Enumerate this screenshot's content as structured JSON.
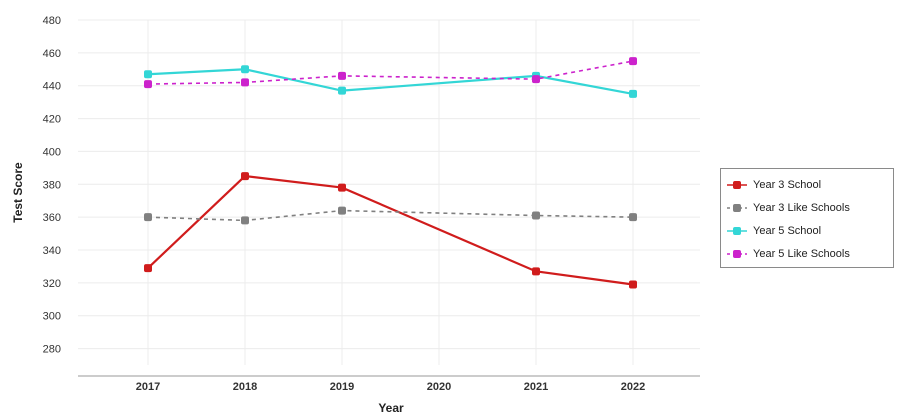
{
  "chart_data": {
    "type": "line",
    "title": "",
    "xlabel": "Year",
    "ylabel": "Test Score",
    "x": [
      "2017",
      "2018",
      "2019",
      "2020",
      "2021",
      "2022"
    ],
    "ylim": [
      270,
      480
    ],
    "yticks": [
      "280",
      "300",
      "320",
      "340",
      "360",
      "380",
      "400",
      "420",
      "440",
      "460",
      "480"
    ],
    "grid": true,
    "legend_position": "right",
    "series": [
      {
        "name": "Year 3 School",
        "values": [
          329,
          385,
          378,
          null,
          327,
          319
        ],
        "color": "#d01c1c",
        "dashed": false,
        "connect_gaps": true
      },
      {
        "name": "Year 3 Like Schools",
        "values": [
          360,
          358,
          364,
          null,
          361,
          360
        ],
        "color": "#808080",
        "dashed": true,
        "connect_gaps": true
      },
      {
        "name": "Year 5 School",
        "values": [
          447,
          450,
          437,
          null,
          446,
          435
        ],
        "color": "#33d6d6",
        "dashed": false,
        "connect_gaps": true
      },
      {
        "name": "Year 5 Like Schools",
        "values": [
          441,
          442,
          446,
          null,
          444,
          455
        ],
        "color": "#cc22cc",
        "dashed": true,
        "connect_gaps": true
      }
    ]
  }
}
